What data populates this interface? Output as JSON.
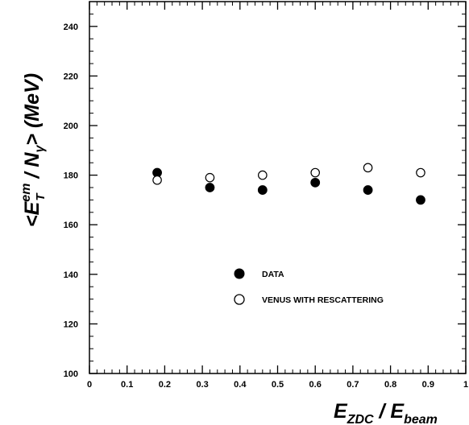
{
  "chart_data": {
    "type": "scatter",
    "xlim": [
      0,
      1
    ],
    "ylim": [
      100,
      250
    ],
    "x_ticks": [
      0,
      0.1,
      0.2,
      0.3,
      0.4,
      0.5,
      0.6,
      0.7,
      0.8,
      0.9,
      1
    ],
    "y_ticks": [
      100,
      120,
      140,
      160,
      180,
      200,
      220,
      240
    ],
    "x_tick_labels": [
      "0",
      "0.1",
      "0.2",
      "0.3",
      "0.4",
      "0.5",
      "0.6",
      "0.7",
      "0.8",
      "0.9",
      "1"
    ],
    "y_tick_labels": [
      "100",
      "120",
      "140",
      "160",
      "180",
      "200",
      "220",
      "240"
    ],
    "xlabel": {
      "main1": "E",
      "sub1": "ZDC",
      "sep": " / ",
      "main2": "E",
      "sub2": "beam"
    },
    "ylabel": {
      "lt": "<",
      "e": "E",
      "sup": "em",
      "sub": "T",
      "sep": " / ",
      "n": "N",
      "gamma": "γ",
      "gt": ">",
      "unit": " (MeV)"
    },
    "series": [
      {
        "name": "DATA",
        "marker": "filled-circle",
        "color": "#000000",
        "points": [
          {
            "x": 0.18,
            "y": 181
          },
          {
            "x": 0.32,
            "y": 175
          },
          {
            "x": 0.46,
            "y": 174
          },
          {
            "x": 0.6,
            "y": 177
          },
          {
            "x": 0.74,
            "y": 174
          },
          {
            "x": 0.88,
            "y": 170
          }
        ]
      },
      {
        "name": "VENUS WITH RESCATTERING",
        "marker": "open-circle",
        "color": "#000000",
        "points": [
          {
            "x": 0.18,
            "y": 178
          },
          {
            "x": 0.32,
            "y": 179
          },
          {
            "x": 0.46,
            "y": 180
          },
          {
            "x": 0.6,
            "y": 181
          },
          {
            "x": 0.74,
            "y": 183
          },
          {
            "x": 0.88,
            "y": 181
          }
        ]
      }
    ],
    "legend_position": "lower-middle",
    "grid": false
  }
}
